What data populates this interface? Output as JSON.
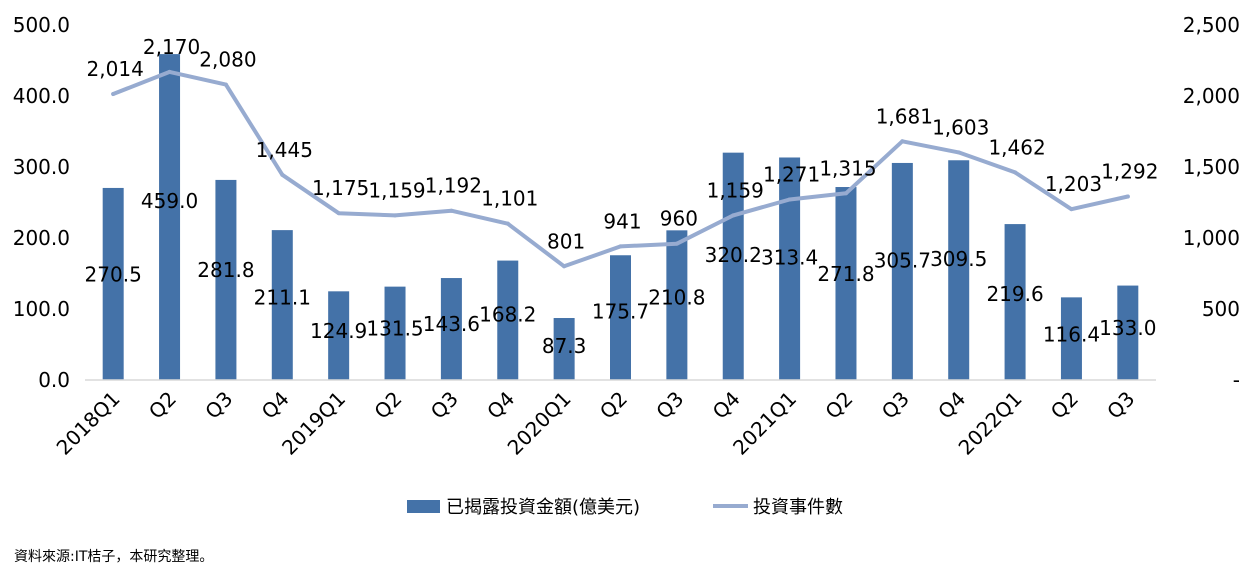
{
  "chart_data": {
    "type": "bar",
    "categories": [
      "2018Q1",
      "Q2",
      "Q3",
      "Q4",
      "2019Q1",
      "Q2",
      "Q3",
      "Q4",
      "2020Q1",
      "Q2",
      "Q3",
      "Q4",
      "2021Q1",
      "Q2",
      "Q3",
      "Q4",
      "2022Q1",
      "Q2",
      "Q3"
    ],
    "series": [
      {
        "name": "已揭露投資金額(億美元)",
        "kind": "bar",
        "axis": "left",
        "color": "#4472a8",
        "values": [
          270.5,
          459.0,
          281.8,
          211.1,
          124.9,
          131.5,
          143.6,
          168.2,
          87.3,
          175.7,
          210.8,
          320.2,
          313.4,
          271.8,
          305.7,
          309.5,
          219.6,
          116.4,
          133.0
        ],
        "labels": [
          "270.5",
          "459.0",
          "281.8",
          "211.1",
          "124.9",
          "131.5",
          "143.6",
          "168.2",
          "87.3",
          "175.7",
          "210.8",
          "320.2",
          "313.4",
          "271.8",
          "305.7",
          "309.5",
          "219.6",
          "116.4",
          "133.0"
        ]
      },
      {
        "name": "投資事件數",
        "kind": "line",
        "axis": "right",
        "color": "#97abd0",
        "values": [
          2014,
          2170,
          2080,
          1445,
          1175,
          1159,
          1192,
          1101,
          801,
          941,
          960,
          1159,
          1271,
          1315,
          1681,
          1603,
          1462,
          1203,
          1292
        ],
        "labels": [
          "2,014",
          "2,170",
          "2,080",
          "1,445",
          "1,175",
          "1,159",
          "1,192",
          "1,101",
          "801",
          "941",
          "960",
          "1,159",
          "1,271",
          "1,315",
          "1,681",
          "1,603",
          "1,462",
          "1,203",
          "1,292"
        ]
      }
    ],
    "y_left": {
      "ylim": [
        0,
        500
      ],
      "ticks": [
        "0.0",
        "100.0",
        "200.0",
        "300.0",
        "400.0",
        "500.0"
      ]
    },
    "y_right": {
      "ylim": [
        0,
        2500
      ],
      "ticks": [
        "-",
        "500",
        "1,000",
        "1,500",
        "2,000",
        "2,500"
      ]
    },
    "grid": false,
    "legend_position": "bottom"
  },
  "source_note": "資料來源:IT桔子，本研究整理。"
}
